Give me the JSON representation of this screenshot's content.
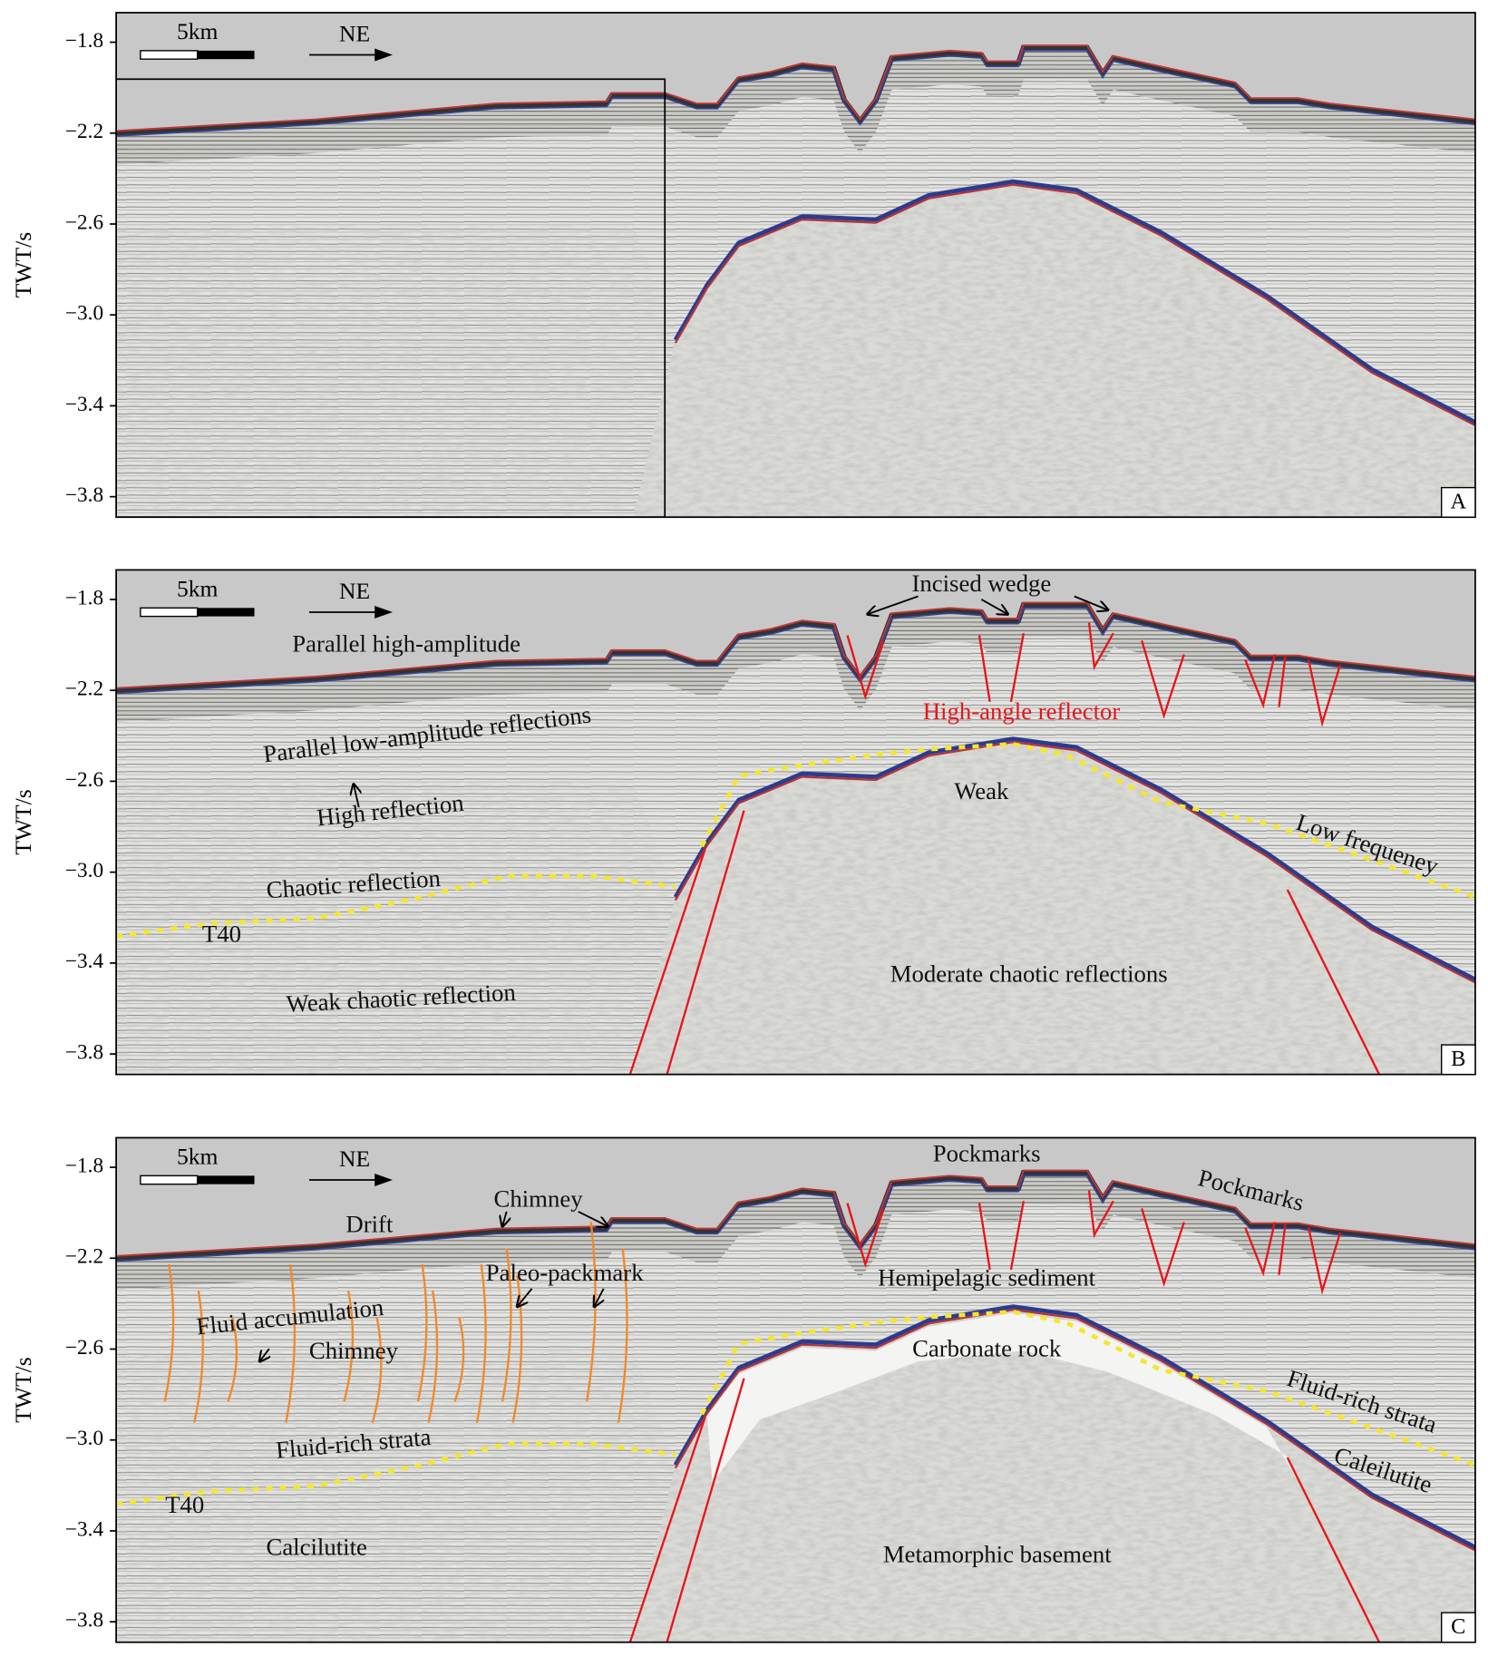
{
  "chart_data": [
    {
      "type": "seismic-section",
      "panel_label": "A",
      "ylabel": "TWT/s",
      "ylim": [
        -1.67,
        -3.89
      ],
      "yticks": [
        {
          "value": -1.8,
          "label": "−1.8"
        },
        {
          "value": -2.2,
          "label": "−2.2"
        },
        {
          "value": -2.6,
          "label": "−2.6"
        },
        {
          "value": -3.0,
          "label": "−3.0"
        },
        {
          "value": -3.4,
          "label": "−3.4"
        },
        {
          "value": -3.8,
          "label": "−3.8"
        }
      ],
      "scale_bar": "5km",
      "direction": "NE"
    },
    {
      "type": "seismic-section",
      "panel_label": "B",
      "ylabel": "TWT/s",
      "ylim": [
        -1.67,
        -3.89
      ],
      "yticks": [
        {
          "value": -1.8,
          "label": "−1.8"
        },
        {
          "value": -2.2,
          "label": "−2.2"
        },
        {
          "value": -2.6,
          "label": "−2.6"
        },
        {
          "value": -3.0,
          "label": "−3.0"
        },
        {
          "value": -3.4,
          "label": "−3.4"
        },
        {
          "value": -3.8,
          "label": "−3.8"
        }
      ],
      "scale_bar": "5km",
      "direction": "NE",
      "annotations": [
        {
          "text": "Incised wedge"
        },
        {
          "text": "Parallel high-amplitude"
        },
        {
          "text": "Parallel low-amplitude reflections"
        },
        {
          "text": "High-angle reflector",
          "color": "#e8141b"
        },
        {
          "text": "High reflection"
        },
        {
          "text": "Weak"
        },
        {
          "text": "Low frequeney"
        },
        {
          "text": "Chaotic reflection"
        },
        {
          "text": "T40"
        },
        {
          "text": "Weak chaotic reflection"
        },
        {
          "text": "Moderate chaotic reflections"
        }
      ]
    },
    {
      "type": "seismic-section",
      "panel_label": "C",
      "ylabel": "TWT/s",
      "ylim": [
        -1.67,
        -3.89
      ],
      "yticks": [
        {
          "value": -1.8,
          "label": "−1.8"
        },
        {
          "value": -2.2,
          "label": "−2.2"
        },
        {
          "value": -2.6,
          "label": "−2.6"
        },
        {
          "value": -3.0,
          "label": "−3.0"
        },
        {
          "value": -3.4,
          "label": "−3.4"
        },
        {
          "value": -3.8,
          "label": "−3.8"
        }
      ],
      "scale_bar": "5km",
      "direction": "NE",
      "annotations": [
        {
          "text": "Pockmarks"
        },
        {
          "text": "Pockmarks"
        },
        {
          "text": "Chimney"
        },
        {
          "text": "Drift"
        },
        {
          "text": "Paleo-packmark"
        },
        {
          "text": "Hemipelagic sediment"
        },
        {
          "text": "Fluid accumulation"
        },
        {
          "text": "Chimney"
        },
        {
          "text": "Carbonate rock"
        },
        {
          "text": "Fluid-rich strata"
        },
        {
          "text": "Fluid-rich strata"
        },
        {
          "text": "Caleilutite"
        },
        {
          "text": "T40"
        },
        {
          "text": "Calcilutite"
        },
        {
          "text": "Metamorphic basement"
        }
      ]
    }
  ]
}
